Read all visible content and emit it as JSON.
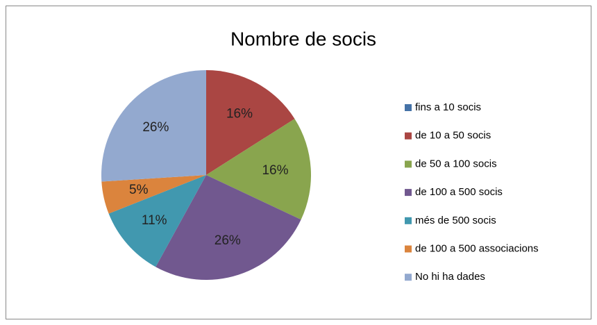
{
  "chart_data": {
    "type": "pie",
    "title": "Nombre de socis",
    "categories": [
      "fins a 10 socis",
      "de 10 a 50 socis",
      "de 50 a 100 socis",
      "de 100 a 500 socis",
      "més de 500 socis",
      "de 100 a 500 associacions",
      "No hi ha dades"
    ],
    "values": [
      0,
      16,
      16,
      26,
      11,
      5,
      26
    ],
    "value_labels": [
      null,
      "16%",
      "16%",
      "26%",
      "11%",
      "5%",
      "26%"
    ],
    "colors": [
      "#4572A7",
      "#AA4643",
      "#89A54E",
      "#71588F",
      "#4198AF",
      "#DB843D",
      "#93A9CF"
    ],
    "legend": "right"
  }
}
